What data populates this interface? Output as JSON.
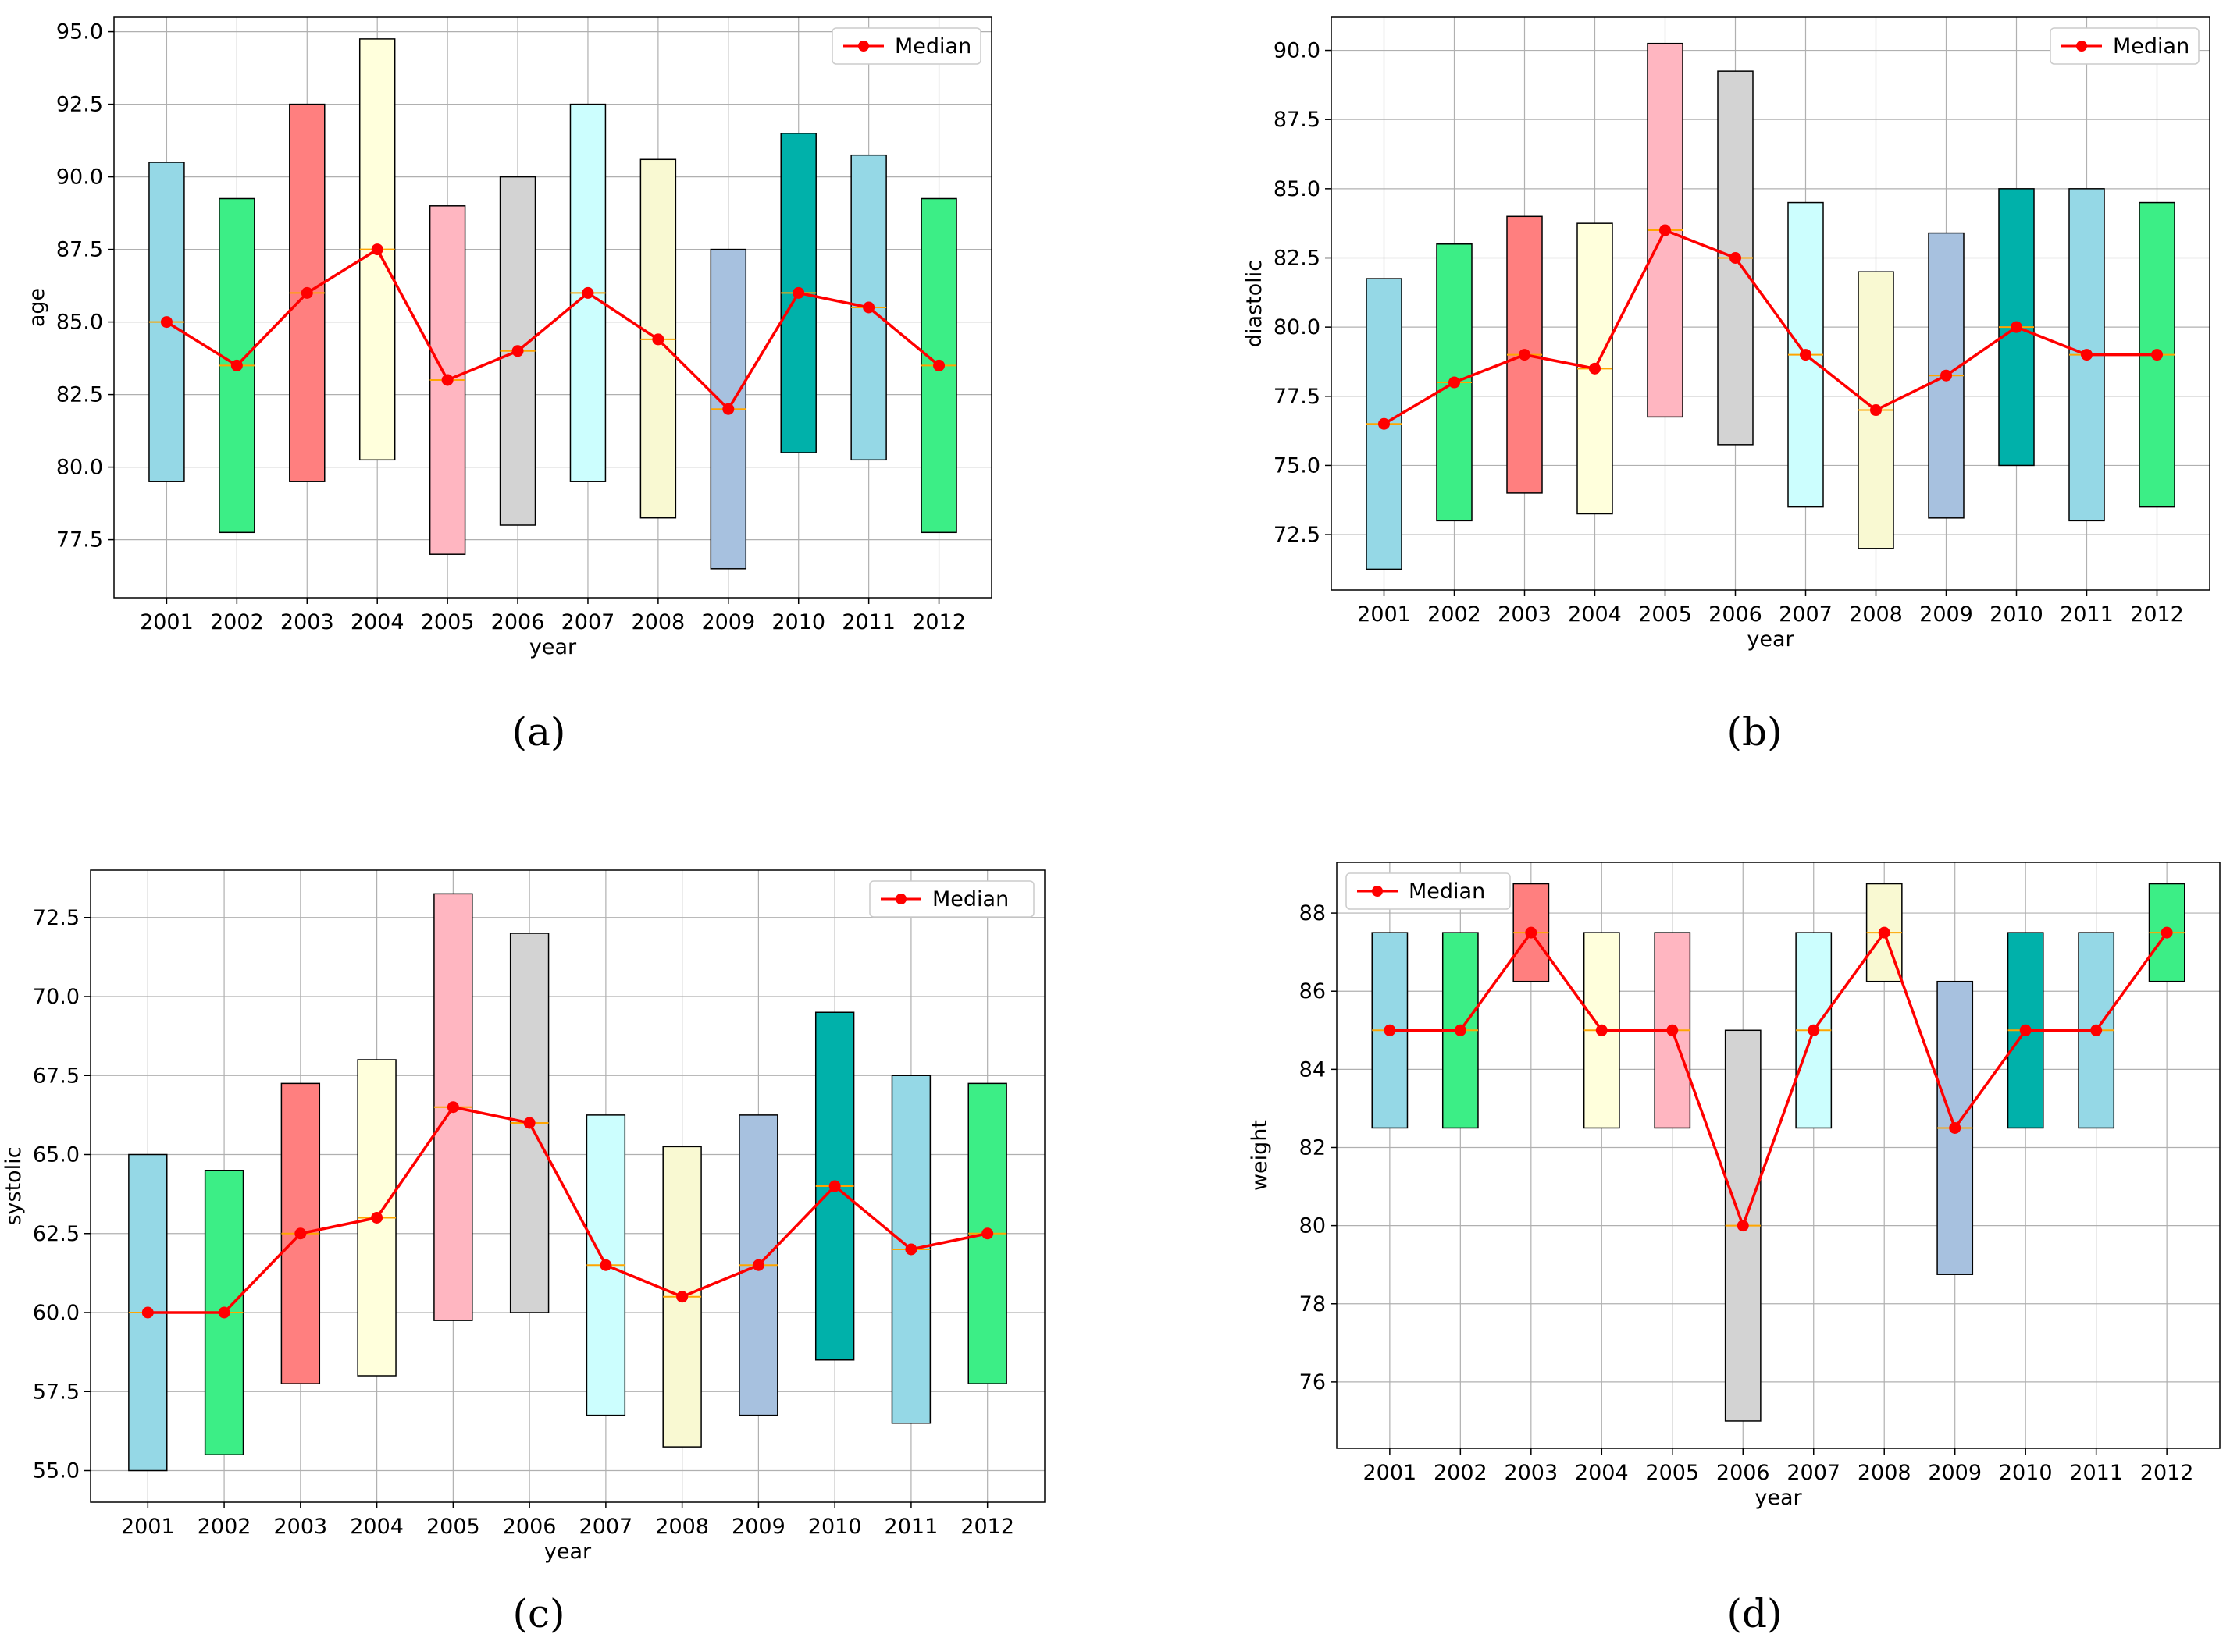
{
  "colors": {
    "box_fills": [
      "#95d8e6",
      "#3cee86",
      "#ff7f7f",
      "#ffffdc",
      "#ffb6c1",
      "#d3d3d3",
      "#ccfefe",
      "#f9f9d2",
      "#a7c1df",
      "#00b1aa",
      "#95d8e6",
      "#3cee86"
    ],
    "median_line": "#ff0000",
    "median_tick": "#ffa500",
    "grid": "#b0b0b0"
  },
  "chart_data": [
    {
      "type": "box",
      "subfigure_label": "(a)",
      "xlabel": "year",
      "ylabel": "age",
      "legend": {
        "label": "Median",
        "position": "top-right"
      },
      "categories": [
        "2001",
        "2002",
        "2003",
        "2004",
        "2005",
        "2006",
        "2007",
        "2008",
        "2009",
        "2010",
        "2011",
        "2012"
      ],
      "q1": [
        79.5,
        77.75,
        79.5,
        80.25,
        77.0,
        78.0,
        79.5,
        78.25,
        76.5,
        80.5,
        80.25,
        77.75
      ],
      "q3": [
        90.5,
        89.25,
        92.5,
        94.75,
        89.0,
        90.0,
        92.5,
        90.6,
        87.5,
        91.5,
        90.75,
        89.25
      ],
      "median": [
        85.0,
        83.5,
        86.0,
        87.5,
        83.0,
        84.0,
        86.0,
        84.4,
        82.0,
        86.0,
        85.5,
        83.5
      ],
      "ylim": [
        75.5,
        95.5
      ],
      "yticks": [
        77.5,
        80.0,
        82.5,
        85.0,
        87.5,
        90.0,
        92.5,
        95.0
      ],
      "ytick_labels": [
        "77.5",
        "80.0",
        "82.5",
        "85.0",
        "87.5",
        "90.0",
        "92.5",
        "95.0"
      ],
      "grid": true
    },
    {
      "type": "box",
      "subfigure_label": "(b)",
      "xlabel": "year",
      "ylabel": "diastolic",
      "legend": {
        "label": "Median",
        "position": "top-right"
      },
      "categories": [
        "2001",
        "2002",
        "2003",
        "2004",
        "2005",
        "2006",
        "2007",
        "2008",
        "2009",
        "2010",
        "2011",
        "2012"
      ],
      "q1": [
        71.25,
        73.0,
        74.0,
        73.25,
        76.75,
        75.75,
        73.5,
        72.0,
        73.1,
        75.0,
        73.0,
        73.5
      ],
      "q3": [
        81.75,
        83.0,
        84.0,
        83.75,
        90.25,
        89.25,
        84.5,
        82.0,
        83.4,
        85.0,
        85.0,
        84.5
      ],
      "median": [
        76.5,
        78.0,
        79.0,
        78.5,
        83.5,
        82.5,
        79.0,
        77.0,
        78.25,
        80.0,
        79.0,
        79.0
      ],
      "ylim": [
        70.5,
        91.2
      ],
      "yticks": [
        72.5,
        75.0,
        77.5,
        80.0,
        82.5,
        85.0,
        87.5,
        90.0
      ],
      "ytick_labels": [
        "72.5",
        "75.0",
        "77.5",
        "80.0",
        "82.5",
        "85.0",
        "87.5",
        "90.0"
      ],
      "grid": true
    },
    {
      "type": "box",
      "subfigure_label": "(c)",
      "xlabel": "year",
      "ylabel": "systolic",
      "legend": {
        "label": "Median",
        "position": "top-right"
      },
      "categories": [
        "2001",
        "2002",
        "2003",
        "2004",
        "2005",
        "2006",
        "2007",
        "2008",
        "2009",
        "2010",
        "2011",
        "2012"
      ],
      "q1": [
        55.0,
        55.5,
        57.75,
        58.0,
        59.75,
        60.0,
        56.75,
        55.75,
        56.75,
        58.5,
        56.5,
        57.75
      ],
      "q3": [
        65.0,
        64.5,
        67.25,
        68.0,
        73.25,
        72.0,
        66.25,
        65.25,
        66.25,
        69.5,
        67.5,
        67.25
      ],
      "median": [
        60.0,
        60.0,
        62.5,
        63.0,
        66.5,
        66.0,
        61.5,
        60.5,
        61.5,
        64.0,
        62.0,
        62.5
      ],
      "ylim": [
        54.0,
        74.0
      ],
      "yticks": [
        55.0,
        57.5,
        60.0,
        62.5,
        65.0,
        67.5,
        70.0,
        72.5
      ],
      "ytick_labels": [
        "55.0",
        "57.5",
        "60.0",
        "62.5",
        "65.0",
        "67.5",
        "70.0",
        "72.5"
      ],
      "grid": true
    },
    {
      "type": "box",
      "subfigure_label": "(d)",
      "xlabel": "year",
      "ylabel": "weight",
      "legend": {
        "label": "Median",
        "position": "top-left"
      },
      "categories": [
        "2001",
        "2002",
        "2003",
        "2004",
        "2005",
        "2006",
        "2007",
        "2008",
        "2009",
        "2010",
        "2011",
        "2012"
      ],
      "q1": [
        82.5,
        82.5,
        86.25,
        82.5,
        82.5,
        75.0,
        82.5,
        86.25,
        78.75,
        82.5,
        82.5,
        86.25
      ],
      "q3": [
        87.5,
        87.5,
        88.75,
        87.5,
        87.5,
        85.0,
        87.5,
        88.75,
        86.25,
        87.5,
        87.5,
        88.75
      ],
      "median": [
        85.0,
        85.0,
        87.5,
        85.0,
        85.0,
        80.0,
        85.0,
        87.5,
        82.5,
        85.0,
        85.0,
        87.5
      ],
      "ylim": [
        74.3,
        89.3
      ],
      "yticks": [
        76,
        78,
        80,
        82,
        84,
        86,
        88
      ],
      "ytick_labels": [
        "76",
        "78",
        "80",
        "82",
        "84",
        "86",
        "88"
      ],
      "grid": true
    }
  ]
}
